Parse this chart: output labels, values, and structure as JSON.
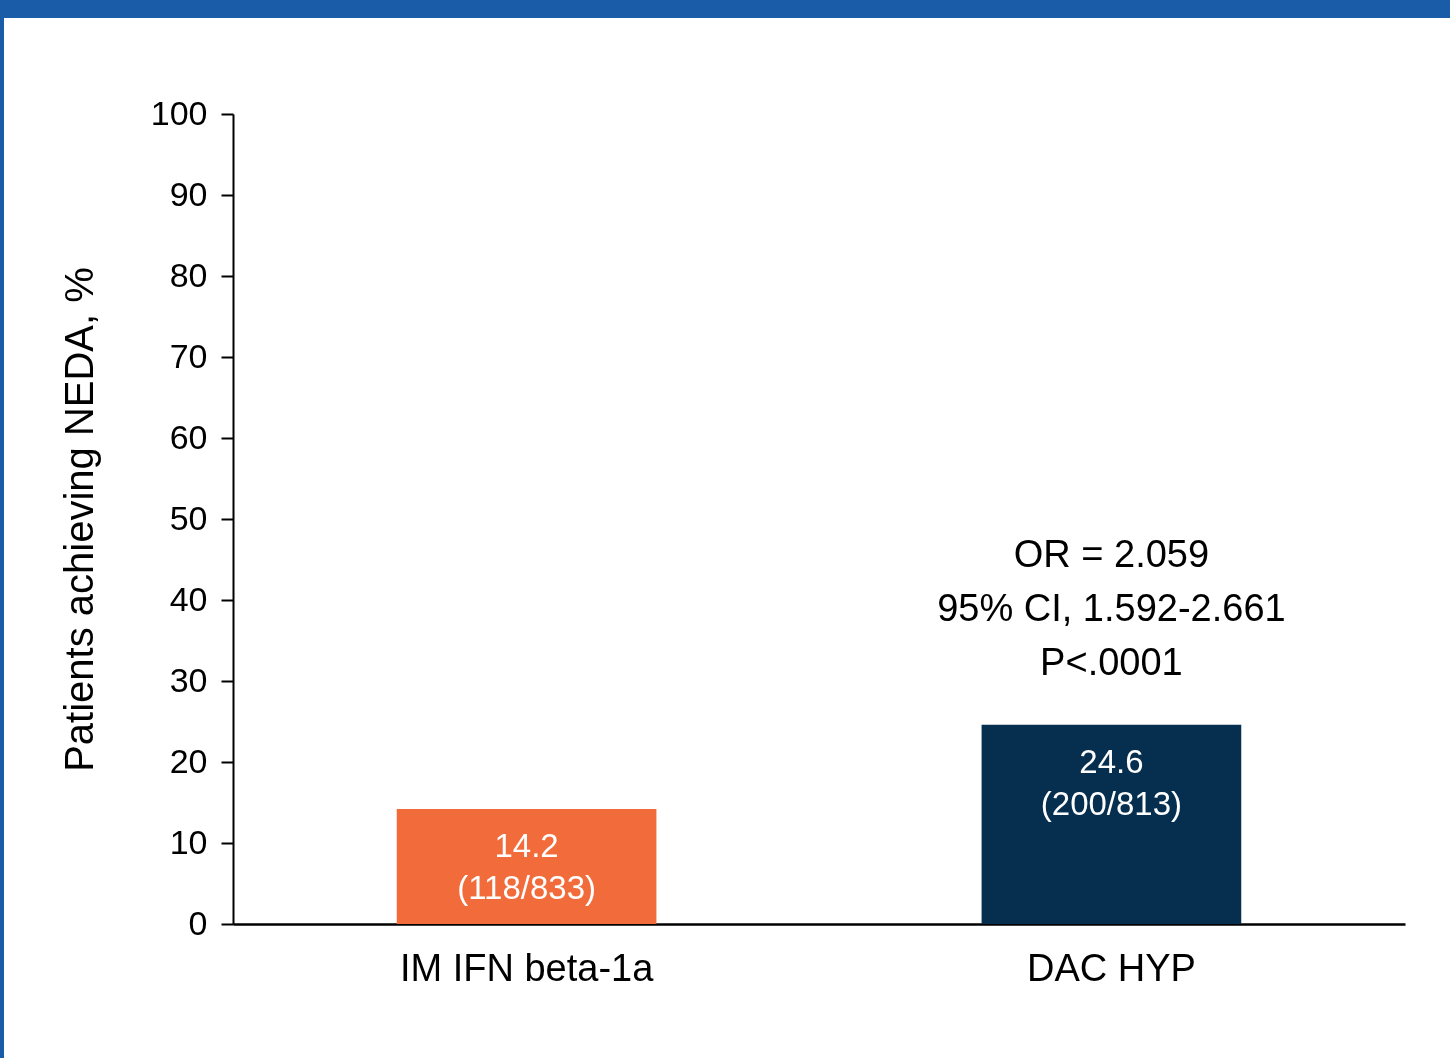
{
  "chart_data": {
    "type": "bar",
    "ylabel": "Patients achieving NEDA, %",
    "categories": [
      "IM IFN beta-1a",
      "DAC HYP"
    ],
    "values": [
      14.2,
      24.6
    ],
    "colors": [
      "#f26b3a",
      "#062f4f"
    ],
    "value_labels": [
      "14.2\n(118/833)",
      "24.6\n(200/813)"
    ],
    "annotations": [
      {
        "text": "OR = 2.059\n95% CI, 1.592-2.661\nP<.0001",
        "x": "DAC HYP",
        "y": 24.6
      }
    ],
    "ylim": [
      0,
      100
    ],
    "yticks": [
      0,
      10,
      20,
      30,
      40,
      50,
      60,
      70,
      80,
      90,
      100
    ],
    "grid": false
  }
}
